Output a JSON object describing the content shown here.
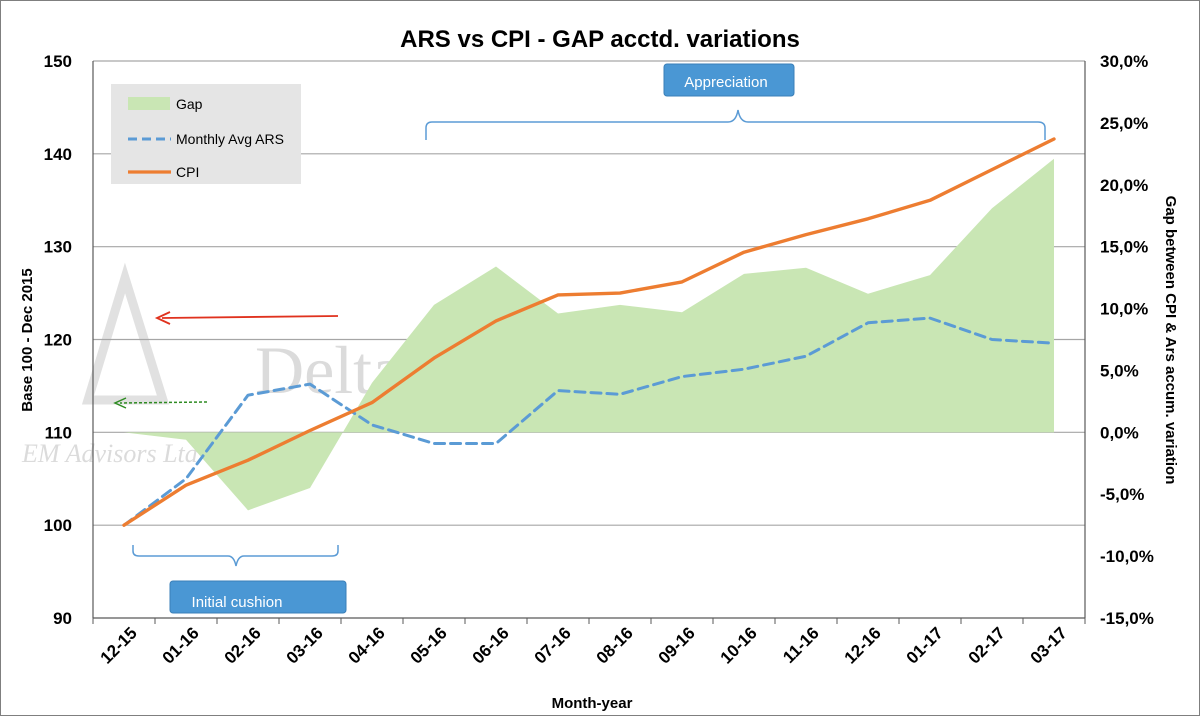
{
  "chart_data": {
    "type": "line",
    "title": "ARS vs CPI - GAP acctd. variations",
    "xlabel": "Month-year",
    "ylabel": "Base 100 - Dec 2015",
    "y2label": "Gap between CPI & Ars accum. variation",
    "categories": [
      "12-15",
      "01-16",
      "02-16",
      "03-16",
      "04-16",
      "05-16",
      "06-16",
      "07-16",
      "08-16",
      "09-16",
      "10-16",
      "11-16",
      "12-16",
      "01-17",
      "02-17",
      "03-17"
    ],
    "ylim": [
      90,
      150
    ],
    "yticks": [
      "90",
      "100",
      "110",
      "120",
      "130",
      "140",
      "150"
    ],
    "y2lim": [
      -15,
      30
    ],
    "y2ticks": [
      "-15,0%",
      "-10,0%",
      "-5,0%",
      "0,0%",
      "5,0%",
      "10,0%",
      "15,0%",
      "20,0%",
      "25,0%",
      "30,0%"
    ],
    "series": [
      {
        "name": "Gap",
        "axis": "right",
        "style": "area",
        "color": "#c9e6b4",
        "values": [
          0.0,
          -0.6,
          -6.3,
          -4.5,
          4.0,
          10.3,
          13.4,
          9.6,
          10.3,
          9.7,
          12.8,
          13.3,
          11.2,
          12.7,
          18.1,
          22.1
        ]
      },
      {
        "name": "Monthly Avg ARS",
        "axis": "left",
        "style": "dashed",
        "color": "#5b9bd5",
        "values": [
          100.0,
          105.0,
          114.0,
          115.2,
          110.8,
          108.8,
          108.8,
          114.5,
          114.1,
          116.0,
          116.8,
          118.2,
          121.8,
          122.3,
          120.0,
          119.6
        ]
      },
      {
        "name": "CPI",
        "axis": "left",
        "style": "solid",
        "color": "#ed7d31",
        "values": [
          100.0,
          104.3,
          107.0,
          110.2,
          113.2,
          118.0,
          122.0,
          124.8,
          125.0,
          126.2,
          129.4,
          131.3,
          133.0,
          135.0,
          138.3,
          141.6
        ]
      }
    ],
    "annotations": {
      "appreciation": "Appreciation",
      "initial_cushion": "Initial cushion"
    }
  },
  "watermark": {
    "main": "Delta EM Advisors Ltd",
    "small": "EM Advisors Ltd"
  },
  "colors": {
    "grid": "#a6a6a6",
    "callout_fill": "#4a97d4",
    "bracket": "#5b9bd5",
    "red_arrow": "#e0321e",
    "green_arrow": "#2e8b22",
    "legend_bg": "#e5e5e5"
  }
}
